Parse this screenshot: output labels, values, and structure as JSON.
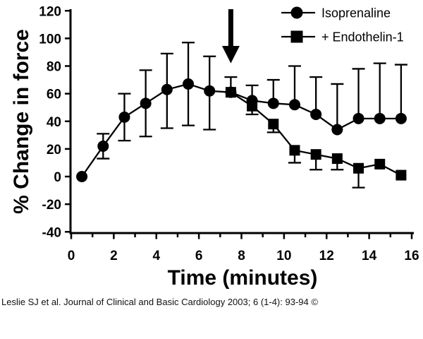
{
  "page": {
    "background": "#ffffff",
    "foreground": "#000000"
  },
  "chart_data": {
    "type": "line",
    "title": "",
    "xlabel": "Time (minutes)",
    "ylabel": "% Change in force",
    "xlim": [
      0,
      16.2
    ],
    "ylim": [
      -40,
      120
    ],
    "x_major_ticks": [
      0,
      2,
      4,
      6,
      8,
      10,
      12,
      14,
      16
    ],
    "x_minor_ticks": [
      1,
      3,
      5,
      7,
      9,
      11,
      13,
      15
    ],
    "y_ticks": [
      120,
      100,
      80,
      60,
      40,
      20,
      0,
      -20,
      -40
    ],
    "grid": false,
    "legend": {
      "position": "top-right",
      "entries": [
        "Isoprenaline",
        "+ Endothelin-1"
      ]
    },
    "annotation": {
      "type": "down-arrow",
      "x_minutes": 7.5,
      "points_at_value": 82
    },
    "series": [
      {
        "name": "Isoprenaline",
        "marker": "circle",
        "color": "#000000",
        "x": [
          0.5,
          1.5,
          2.5,
          3.5,
          4.5,
          5.5,
          6.5,
          7.5,
          8.5,
          9.5,
          10.5,
          11.5,
          12.5,
          13.5,
          14.5,
          15.5
        ],
        "y": [
          0,
          22,
          43,
          53,
          63,
          67,
          62,
          61,
          55,
          53,
          52,
          45,
          34,
          42,
          42,
          42
        ],
        "err_up": [
          0,
          9,
          17,
          24,
          26,
          30,
          25,
          0,
          11,
          17,
          28,
          27,
          33,
          36,
          40,
          39
        ],
        "err_down": [
          0,
          9,
          17,
          24,
          28,
          30,
          28,
          0,
          0,
          0,
          0,
          0,
          0,
          0,
          0,
          0
        ]
      },
      {
        "name": "+ Endothelin-1",
        "marker": "square",
        "color": "#000000",
        "x": [
          7.5,
          8.5,
          9.5,
          10.5,
          11.5,
          12.5,
          13.5,
          14.5,
          15.5
        ],
        "y": [
          61,
          51,
          38,
          19,
          16,
          13,
          6,
          9,
          1
        ],
        "err_up": [
          11,
          0,
          0,
          0,
          0,
          0,
          0,
          0,
          0
        ],
        "err_down": [
          0,
          6,
          6,
          9,
          11,
          8,
          14,
          0,
          0
        ]
      }
    ]
  },
  "caption": {
    "text": "Leslie SJ et al. Journal of Clinical and Basic Cardiology 2003; 6 (1-4): 93-94 ©"
  }
}
